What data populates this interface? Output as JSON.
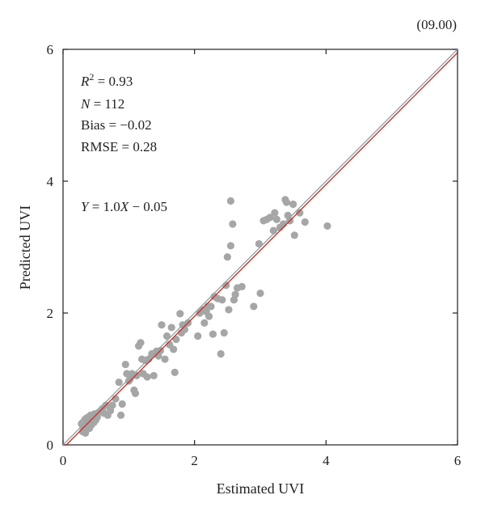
{
  "chart_data": {
    "type": "scatter",
    "panel_label": "(09.00)",
    "xlabel": "Estimated UVI",
    "ylabel": "Predicted UVI",
    "xlim": [
      0,
      6
    ],
    "ylim": [
      0,
      6
    ],
    "xticks": [
      "0",
      "2",
      "4",
      "6"
    ],
    "yticks": [
      "0",
      "2",
      "4",
      "6"
    ],
    "grid": false,
    "stats": {
      "r2_symbol": "R",
      "r2_sup": "2",
      "r2_value": " = 0.93",
      "n_symbol": "N",
      "n_value": " = 112",
      "bias": "Bias = −0.02",
      "rmse": "RMSE = 0.28",
      "eq_y": "Y",
      "eq_mid": " = 1.0",
      "eq_x": "X",
      "eq_tail": " − 0.05"
    },
    "lines": [
      {
        "kind": "one-to-one",
        "slope": 1.0,
        "intercept": 0.0,
        "color": "#9aa3ad"
      },
      {
        "kind": "regression",
        "slope": 1.0,
        "intercept": -0.05,
        "color": "#c0392b"
      }
    ],
    "point_color": "#a6a6a6",
    "points": [
      [
        0.3,
        0.2
      ],
      [
        0.3,
        0.28
      ],
      [
        0.3,
        0.34
      ],
      [
        0.32,
        0.22
      ],
      [
        0.32,
        0.3
      ],
      [
        0.33,
        0.38
      ],
      [
        0.35,
        0.25
      ],
      [
        0.35,
        0.4
      ],
      [
        0.36,
        0.33
      ],
      [
        0.38,
        0.42
      ],
      [
        0.38,
        0.28
      ],
      [
        0.4,
        0.35
      ],
      [
        0.42,
        0.45
      ],
      [
        0.43,
        0.3
      ],
      [
        0.45,
        0.4
      ],
      [
        0.47,
        0.34
      ],
      [
        0.48,
        0.47
      ],
      [
        0.5,
        0.38
      ],
      [
        0.52,
        0.42
      ],
      [
        0.55,
        0.5
      ],
      [
        0.6,
        0.55
      ],
      [
        0.62,
        0.48
      ],
      [
        0.65,
        0.6
      ],
      [
        0.68,
        0.45
      ],
      [
        0.72,
        0.52
      ],
      [
        0.75,
        0.6
      ],
      [
        0.8,
        0.7
      ],
      [
        0.85,
        0.95
      ],
      [
        0.88,
        0.45
      ],
      [
        0.9,
        0.62
      ],
      [
        0.95,
        1.22
      ],
      [
        0.97,
        1.08
      ],
      [
        1.0,
        0.97
      ],
      [
        1.05,
        1.08
      ],
      [
        1.08,
        0.83
      ],
      [
        1.1,
        0.78
      ],
      [
        1.12,
        1.05
      ],
      [
        1.15,
        1.5
      ],
      [
        1.18,
        1.55
      ],
      [
        1.2,
        1.3
      ],
      [
        1.22,
        1.08
      ],
      [
        1.25,
        1.28
      ],
      [
        1.28,
        1.03
      ],
      [
        1.3,
        1.3
      ],
      [
        1.35,
        1.38
      ],
      [
        1.38,
        1.05
      ],
      [
        1.42,
        1.42
      ],
      [
        1.48,
        1.43
      ],
      [
        1.5,
        1.82
      ],
      [
        1.55,
        1.3
      ],
      [
        1.58,
        1.65
      ],
      [
        1.62,
        1.52
      ],
      [
        1.65,
        1.78
      ],
      [
        1.68,
        1.45
      ],
      [
        1.7,
        1.1
      ],
      [
        1.72,
        1.6
      ],
      [
        1.78,
        1.99
      ],
      [
        1.8,
        1.7
      ],
      [
        1.82,
        1.82
      ],
      [
        1.85,
        1.75
      ],
      [
        1.9,
        1.85
      ],
      [
        2.05,
        1.65
      ],
      [
        2.08,
        2.0
      ],
      [
        2.12,
        2.05
      ],
      [
        2.15,
        1.85
      ],
      [
        2.18,
        2.02
      ],
      [
        2.2,
        2.1
      ],
      [
        2.22,
        1.95
      ],
      [
        2.25,
        2.1
      ],
      [
        2.28,
        1.68
      ],
      [
        2.3,
        2.25
      ],
      [
        2.35,
        2.22
      ],
      [
        2.4,
        1.38
      ],
      [
        2.42,
        2.2
      ],
      [
        2.45,
        1.7
      ],
      [
        2.48,
        2.42
      ],
      [
        2.5,
        2.85
      ],
      [
        2.52,
        2.05
      ],
      [
        2.55,
        3.02
      ],
      [
        2.55,
        3.7
      ],
      [
        2.58,
        3.35
      ],
      [
        2.6,
        2.2
      ],
      [
        2.62,
        2.28
      ],
      [
        2.65,
        2.38
      ],
      [
        2.72,
        2.4
      ],
      [
        2.9,
        2.1
      ],
      [
        2.98,
        3.05
      ],
      [
        3.0,
        2.3
      ],
      [
        3.05,
        3.4
      ],
      [
        3.1,
        3.42
      ],
      [
        3.15,
        3.45
      ],
      [
        3.2,
        3.25
      ],
      [
        3.22,
        3.52
      ],
      [
        3.25,
        3.42
      ],
      [
        3.3,
        3.3
      ],
      [
        3.35,
        3.35
      ],
      [
        3.38,
        3.72
      ],
      [
        3.4,
        3.68
      ],
      [
        3.42,
        3.48
      ],
      [
        3.45,
        3.4
      ],
      [
        3.5,
        3.65
      ],
      [
        3.52,
        3.18
      ],
      [
        3.6,
        3.52
      ],
      [
        3.68,
        3.38
      ],
      [
        4.02,
        3.32
      ],
      [
        0.28,
        0.32
      ],
      [
        0.34,
        0.18
      ],
      [
        0.4,
        0.25
      ],
      [
        0.44,
        0.36
      ],
      [
        0.58,
        0.52
      ],
      [
        1.02,
        1.0
      ],
      [
        1.45,
        1.35
      ]
    ]
  }
}
